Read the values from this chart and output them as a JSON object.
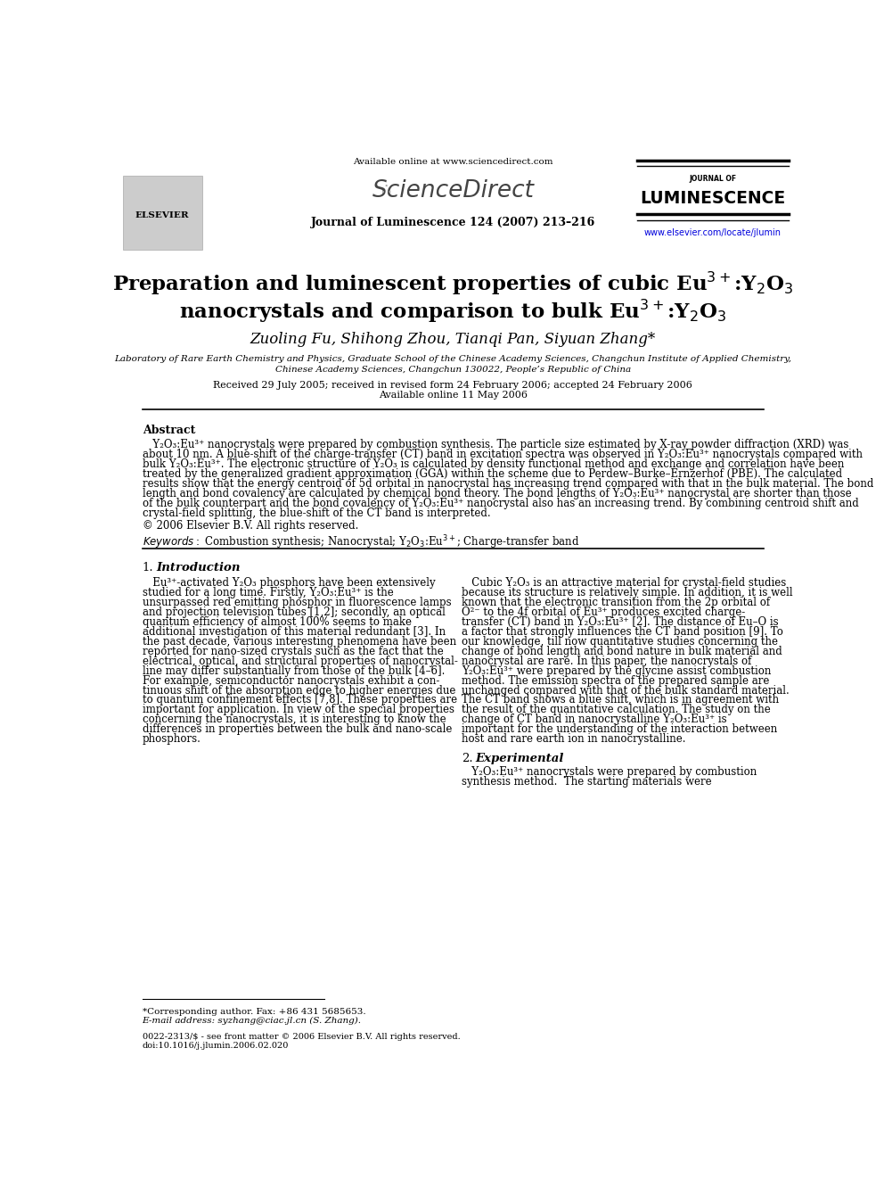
{
  "bg_color": "#ffffff",
  "available_online": "Available online at www.sciencedirect.com",
  "journal_line": "Journal of Luminescence 124 (2007) 213–216",
  "url": "www.elsevier.com/locate/jlumin",
  "affiliation1": "Laboratory of Rare Earth Chemistry and Physics, Graduate School of the Chinese Academy Sciences, Changchun Institute of Applied Chemistry,",
  "affiliation2": "Chinese Academy Sciences, Changchun 130022, People’s Republic of China",
  "received": "Received 29 July 2005; received in revised form 24 February 2006; accepted 24 February 2006",
  "available": "Available online 11 May 2006",
  "abstract_title": "Abstract",
  "copyright": "© 2006 Elsevier B.V. All rights reserved.",
  "footnote_star": "*Corresponding author. Fax: +86 431 5685653.",
  "footnote_email": "E-mail address: syzhang@ciac.jl.cn (S. Zhang).",
  "footer_issn": "0022-2313/$ - see front matter © 2006 Elsevier B.V. All rights reserved.",
  "footer_doi": "doi:10.1016/j.jlumin.2006.02.020",
  "abs_lines": [
    "   Y₂O₃:Eu³⁺ nanocrystals were prepared by combustion synthesis. The particle size estimated by X-ray powder diffraction (XRD) was",
    "about 10 nm. A blue-shift of the charge-transfer (CT) band in excitation spectra was observed in Y₂O₃:Eu³⁺ nanocrystals compared with",
    "bulk Y₂O₃:Eu³⁺. The electronic structure of Y₂O₃ is calculated by density functional method and exchange and correlation have been",
    "treated by the generalized gradient approximation (GGA) within the scheme due to Perdew–Burke–Ernzerhof (PBE). The calculated",
    "results show that the energy centroid of 5d orbital in nanocrystal has increasing trend compared with that in the bulk material. The bond",
    "length and bond covalency are calculated by chemical bond theory. The bond lengths of Y₂O₃:Eu³⁺ nanocrystal are shorter than those",
    "of the bulk counterpart and the bond covalency of Y₂O₃:Eu³⁺ nanocrystal also has an increasing trend. By combining centroid shift and",
    "crystal-field splitting, the blue-shift of the CT band is interpreted."
  ],
  "intro_left_lines": [
    "   Eu³⁺-activated Y₂O₃ phosphors have been extensively",
    "studied for a long time. Firstly, Y₂O₃:Eu³⁺ is the",
    "unsurpassed red emitting phosphor in fluorescence lamps",
    "and projection television tubes [1,2]; secondly, an optical",
    "quantum efficiency of almost 100% seems to make",
    "additional investigation of this material redundant [3]. In",
    "the past decade, various interesting phenomena have been",
    "reported for nano-sized crystals such as the fact that the",
    "electrical, optical, and structural properties of nanocrystal-",
    "line may differ substantially from those of the bulk [4–6].",
    "For example, semiconductor nanocrystals exhibit a con-",
    "tinuous shift of the absorption edge to higher energies due",
    "to quantum confinement effects [7,8]. These properties are",
    "important for application. In view of the special properties",
    "concerning the nanocrystals, it is interesting to know the",
    "differences in properties between the bulk and nano-scale",
    "phosphors."
  ],
  "intro_right_lines": [
    "   Cubic Y₂O₃ is an attractive material for crystal-field studies",
    "because its structure is relatively simple. In addition, it is well",
    "known that the electronic transition from the 2p orbital of",
    "O²⁻ to the 4f orbital of Eu³⁺ produces excited charge-",
    "transfer (CT) band in Y₂O₃:Eu³⁺ [2]. The distance of Eu–O is",
    "a factor that strongly influences the CT band position [9]. To",
    "our knowledge, till now quantitative studies concerning the",
    "change of bond length and bond nature in bulk material and",
    "nanocrystal are rare. In this paper, the nanocrystals of",
    "Y₂O₃:Eu³⁺ were prepared by the glycine assist combustion",
    "method. The emission spectra of the prepared sample are",
    "unchanged compared with that of the bulk standard material.",
    "The CT band shows a blue shift, which is in agreement with",
    "the result of the quantitative calculation. The study on the",
    "change of CT band in nanocrystalline Y₂O₃:Eu³⁺ is",
    "important for the understanding of the interaction between",
    "host and rare earth ion in nanocrystalline."
  ],
  "exp_right_lines": [
    "   Y₂O₃:Eu³⁺ nanocrystals were prepared by combustion",
    "synthesis method.  The starting materials were"
  ]
}
